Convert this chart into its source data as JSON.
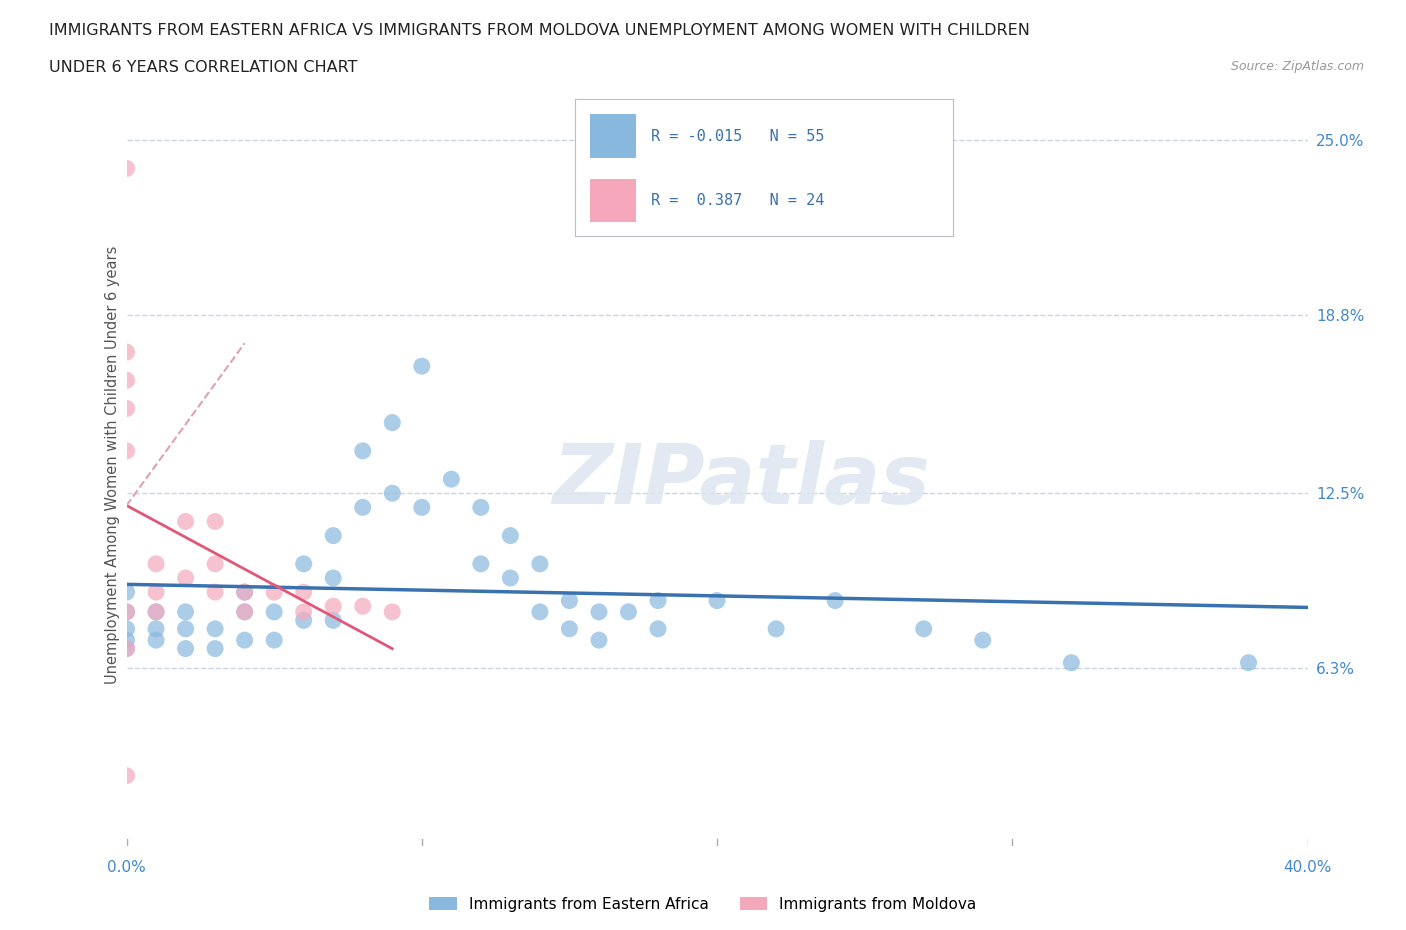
{
  "title_line1": "IMMIGRANTS FROM EASTERN AFRICA VS IMMIGRANTS FROM MOLDOVA UNEMPLOYMENT AMONG WOMEN WITH CHILDREN",
  "title_line2": "UNDER 6 YEARS CORRELATION CHART",
  "source_text": "Source: ZipAtlas.com",
  "ylabel": "Unemployment Among Women with Children Under 6 years",
  "xlim": [
    0.0,
    0.4
  ],
  "ylim": [
    0.0,
    0.27
  ],
  "ytick_vals": [
    0.063,
    0.125,
    0.188,
    0.25
  ],
  "ytick_labels": [
    "6.3%",
    "12.5%",
    "18.8%",
    "25.0%"
  ],
  "blue_color": "#89b8df",
  "pink_color": "#f5a8bc",
  "blue_line_color": "#3a72b0",
  "pink_line_color": "#e05878",
  "pink_line_dashed_color": "#e0a0b8",
  "grid_color": "#c8d4e8",
  "watermark": "ZIPatlas",
  "blue_scatter_x": [
    0.0,
    0.0,
    0.0,
    0.0,
    0.0,
    0.01,
    0.01,
    0.01,
    0.02,
    0.02,
    0.02,
    0.03,
    0.03,
    0.04,
    0.04,
    0.04,
    0.05,
    0.05,
    0.06,
    0.06,
    0.07,
    0.07,
    0.07,
    0.08,
    0.08,
    0.09,
    0.09,
    0.1,
    0.1,
    0.11,
    0.12,
    0.12,
    0.13,
    0.13,
    0.14,
    0.14,
    0.15,
    0.15,
    0.16,
    0.16,
    0.17,
    0.18,
    0.18,
    0.2,
    0.22,
    0.24,
    0.27,
    0.29,
    0.32,
    0.38
  ],
  "blue_scatter_y": [
    0.09,
    0.083,
    0.077,
    0.073,
    0.07,
    0.083,
    0.077,
    0.073,
    0.083,
    0.077,
    0.07,
    0.077,
    0.07,
    0.09,
    0.083,
    0.073,
    0.083,
    0.073,
    0.1,
    0.08,
    0.11,
    0.095,
    0.08,
    0.14,
    0.12,
    0.15,
    0.125,
    0.17,
    0.12,
    0.13,
    0.12,
    0.1,
    0.11,
    0.095,
    0.1,
    0.083,
    0.087,
    0.077,
    0.083,
    0.073,
    0.083,
    0.087,
    0.077,
    0.087,
    0.077,
    0.087,
    0.077,
    0.073,
    0.065,
    0.065
  ],
  "pink_scatter_x": [
    0.0,
    0.0,
    0.0,
    0.0,
    0.0,
    0.0,
    0.0,
    0.0,
    0.01,
    0.01,
    0.01,
    0.02,
    0.02,
    0.03,
    0.03,
    0.03,
    0.04,
    0.04,
    0.05,
    0.06,
    0.06,
    0.07,
    0.08,
    0.09
  ],
  "pink_scatter_y": [
    0.24,
    0.175,
    0.165,
    0.155,
    0.14,
    0.083,
    0.07,
    0.025,
    0.1,
    0.09,
    0.083,
    0.115,
    0.095,
    0.115,
    0.1,
    0.09,
    0.09,
    0.083,
    0.09,
    0.09,
    0.083,
    0.085,
    0.085,
    0.083
  ]
}
